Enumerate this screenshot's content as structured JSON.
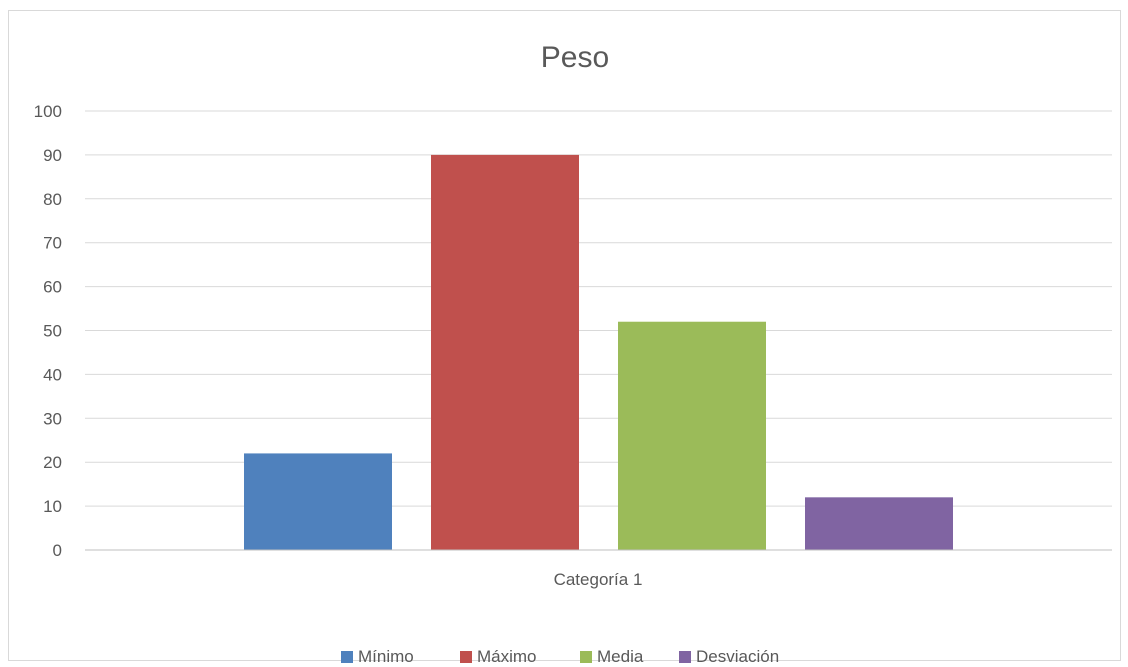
{
  "chart_data": {
    "type": "bar",
    "title": "Peso",
    "categories": [
      "Categoría 1"
    ],
    "series": [
      {
        "name": "Mínimo",
        "values": [
          22
        ],
        "color": "#4f81bd"
      },
      {
        "name": "Máximo",
        "values": [
          90
        ],
        "color": "#c0504d"
      },
      {
        "name": "Media",
        "values": [
          52
        ],
        "color": "#9bbb59"
      },
      {
        "name": "Desviación",
        "values": [
          12
        ],
        "color": "#8064a2"
      }
    ],
    "ylim": [
      0,
      100
    ],
    "yticks": [
      "0",
      "10",
      "20",
      "30",
      "40",
      "50",
      "60",
      "70",
      "80",
      "90",
      "100"
    ],
    "grid": true,
    "legend": "bottom"
  }
}
